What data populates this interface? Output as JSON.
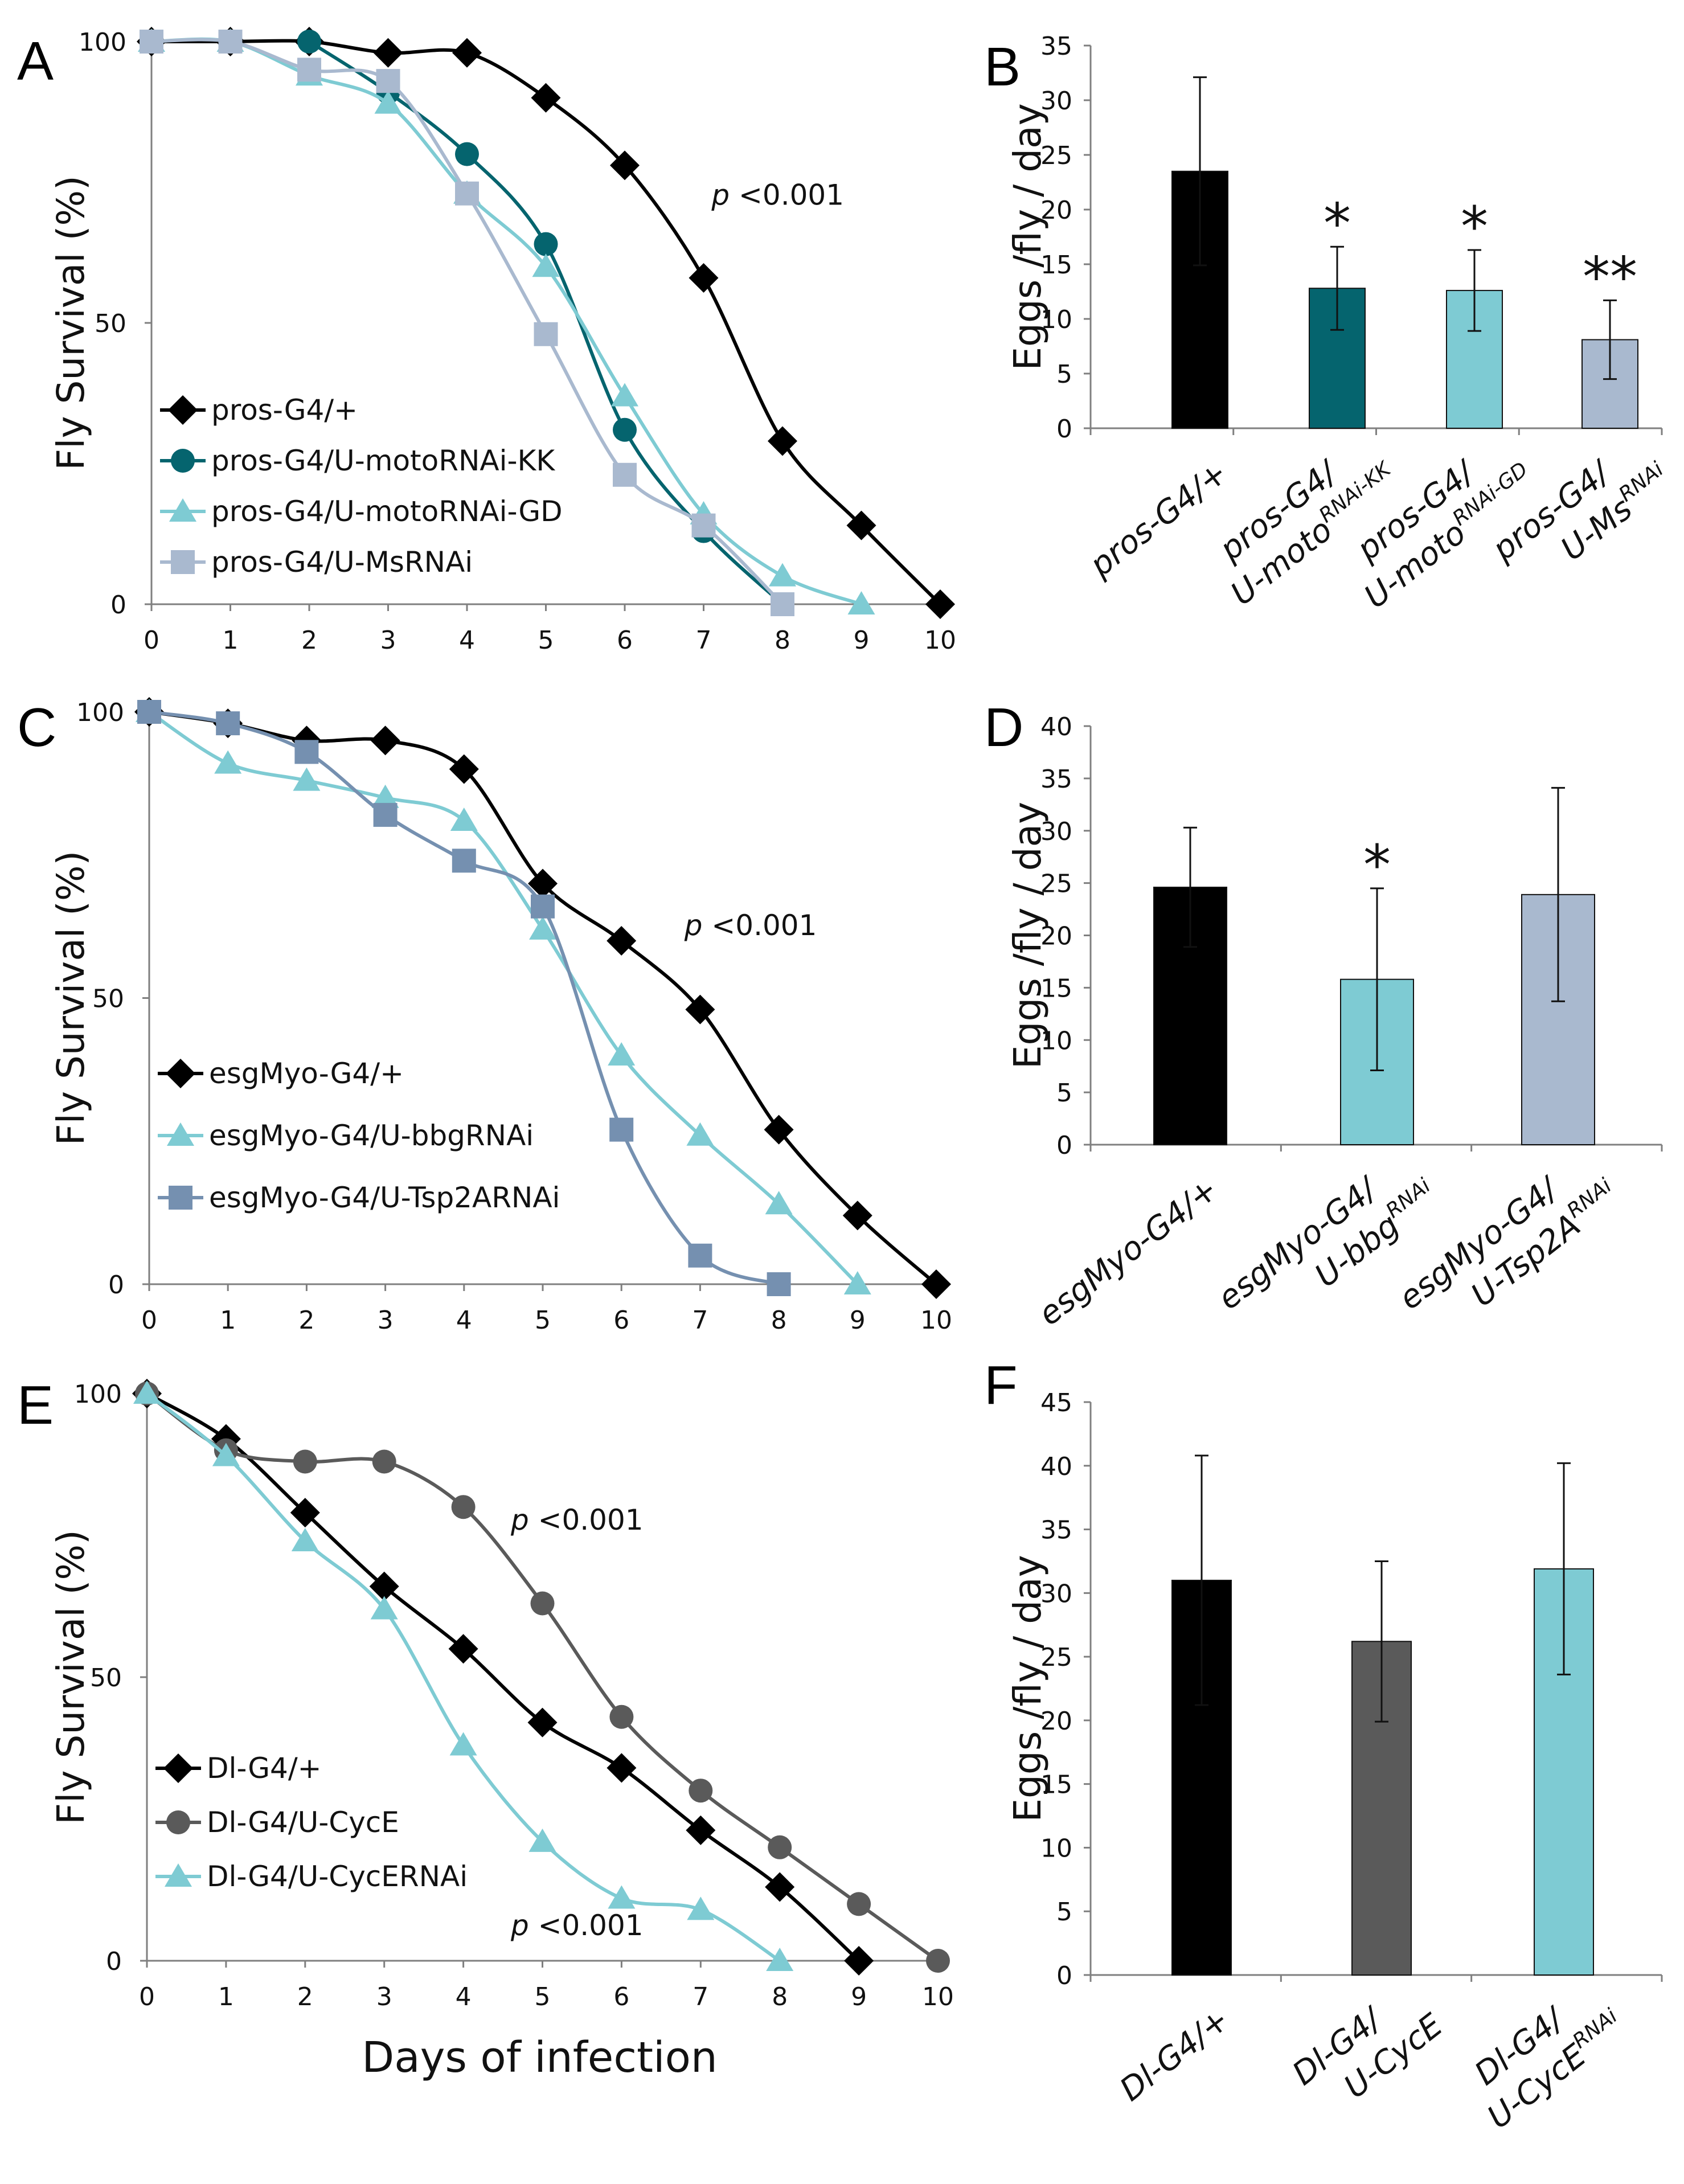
{
  "colors": {
    "black": "#000000",
    "teal": "#05646e",
    "light_teal": "#7ecbd3",
    "lavender": "#a9b9cf",
    "steel_blue": "#7590b0",
    "gray": "#5a5a5a"
  },
  "chart_data": [
    {
      "panel": "A",
      "type": "line",
      "ylabel": "Fly Survival (%)",
      "xlabel": "",
      "xlim": [
        0,
        10
      ],
      "ylim": [
        0,
        100
      ],
      "xticks": [
        "0",
        "1",
        "2",
        "3",
        "4",
        "5",
        "6",
        "7",
        "8",
        "9",
        "10"
      ],
      "yticks": [
        "0",
        "50",
        "100"
      ],
      "series": [
        {
          "name": "pros-G4/+",
          "color": "#000000",
          "marker": "diamond",
          "x": [
            0,
            1,
            2,
            3,
            4,
            5,
            6,
            7,
            8,
            9,
            10
          ],
          "y": [
            100,
            100,
            100,
            98,
            98,
            90,
            78,
            58,
            29,
            14,
            0
          ]
        },
        {
          "name": "pros-G4/U-motoRNAi-KK",
          "color": "#05646e",
          "marker": "circle",
          "x": [
            2,
            3,
            4,
            5,
            6,
            7,
            8
          ],
          "y": [
            100,
            91,
            80,
            64,
            31,
            13,
            0
          ]
        },
        {
          "name": "pros-G4/U-motoRNAi-GD",
          "color": "#7ecbd3",
          "marker": "triangle",
          "x": [
            0,
            1,
            2,
            3,
            4,
            5,
            6,
            7,
            8,
            9
          ],
          "y": [
            100,
            100,
            94,
            89,
            73,
            60,
            37,
            16,
            5,
            0
          ]
        },
        {
          "name": "pros-G4/U-MsRNAi",
          "color": "#a9b9cf",
          "marker": "square",
          "x": [
            0,
            1,
            2,
            3,
            4,
            5,
            6,
            7,
            8
          ],
          "y": [
            100,
            100,
            95,
            93,
            73,
            48,
            23,
            14,
            0
          ]
        }
      ],
      "annotations": [
        {
          "italic": "p",
          "text": " <0.001",
          "x": 7.1,
          "y": 71
        }
      ]
    },
    {
      "panel": "B",
      "type": "bar",
      "ylabel": "Eggs /fly / day",
      "ylim": [
        0,
        35
      ],
      "yticks": [
        "0",
        "5",
        "10",
        "15",
        "20",
        "25",
        "30",
        "35"
      ],
      "categories": [
        {
          "line1": "pros-G4/+",
          "line2_base": "",
          "line2_sup": ""
        },
        {
          "line1": "pros-G4/",
          "line2_base": "U-moto",
          "line2_sup": "RNAi-KK"
        },
        {
          "line1": "pros-G4/",
          "line2_base": "U-moto",
          "line2_sup": "RNAi-GD"
        },
        {
          "line1": "pros-G4/",
          "line2_base": "U-Ms",
          "line2_sup": "RNAi"
        }
      ],
      "values": [
        23.5,
        12.8,
        12.6,
        8.1
      ],
      "errors": [
        8.6,
        3.8,
        3.7,
        3.6
      ],
      "colors": [
        "#000000",
        "#05646e",
        "#7ecbd3",
        "#a9b9cf"
      ],
      "significance": [
        "",
        "*",
        "*",
        "**"
      ]
    },
    {
      "panel": "C",
      "type": "line",
      "ylabel": "Fly Survival (%)",
      "xlabel": "",
      "xlim": [
        0,
        10
      ],
      "ylim": [
        0,
        100
      ],
      "xticks": [
        "0",
        "1",
        "2",
        "3",
        "4",
        "5",
        "6",
        "7",
        "8",
        "9",
        "10"
      ],
      "yticks": [
        "0",
        "50",
        "100"
      ],
      "series": [
        {
          "name": "esgMyo-G4/+",
          "color": "#000000",
          "marker": "diamond",
          "x": [
            0,
            1,
            2,
            3,
            4,
            5,
            6,
            7,
            8,
            9,
            10
          ],
          "y": [
            100,
            98,
            95,
            95,
            90,
            70,
            60,
            48,
            27,
            12,
            0
          ]
        },
        {
          "name": "esgMyo-G4/U-bbgRNAi",
          "color": "#7ecbd3",
          "marker": "triangle",
          "x": [
            0,
            1,
            2,
            3,
            4,
            5,
            6,
            7,
            8,
            9
          ],
          "y": [
            100,
            91,
            88,
            85,
            81,
            62,
            40,
            26,
            14,
            0
          ]
        },
        {
          "name": "esgMyo-G4/U-Tsp2ARNAi",
          "color": "#7590b0",
          "marker": "square",
          "x": [
            0,
            1,
            2,
            3,
            4,
            5,
            6,
            7,
            8
          ],
          "y": [
            100,
            98,
            93,
            82,
            74,
            66,
            27,
            5,
            0
          ]
        }
      ],
      "annotations": [
        {
          "italic": "p",
          "text": " <0.001",
          "x": 6.8,
          "y": 61
        }
      ]
    },
    {
      "panel": "D",
      "type": "bar",
      "ylabel": "Eggs /fly / day",
      "ylim": [
        0,
        40
      ],
      "yticks": [
        "0",
        "5",
        "10",
        "15",
        "20",
        "25",
        "30",
        "35",
        "40"
      ],
      "categories": [
        {
          "line1": "esgMyo-G4/+",
          "line2_base": "",
          "line2_sup": ""
        },
        {
          "line1": "esgMyo-G4/",
          "line2_base": "U-bbg",
          "line2_sup": "RNAi"
        },
        {
          "line1": "esgMyo-G4/",
          "line2_base": "U-Tsp2A",
          "line2_sup": "RNAi"
        }
      ],
      "values": [
        24.6,
        15.8,
        23.9
      ],
      "errors": [
        5.7,
        8.7,
        10.2
      ],
      "colors": [
        "#000000",
        "#7ecbd3",
        "#a9b9cf"
      ],
      "significance": [
        "",
        "*",
        ""
      ]
    },
    {
      "panel": "E",
      "type": "line",
      "ylabel": "Fly Survival (%)",
      "xlabel": "Days of infection",
      "xlim": [
        0,
        10
      ],
      "ylim": [
        0,
        100
      ],
      "xticks": [
        "0",
        "1",
        "2",
        "3",
        "4",
        "5",
        "6",
        "7",
        "8",
        "9",
        "10"
      ],
      "yticks": [
        "0",
        "50",
        "100"
      ],
      "series": [
        {
          "name": "Dl-G4/+",
          "color": "#000000",
          "marker": "diamond",
          "x": [
            0,
            1,
            2,
            3,
            4,
            5,
            6,
            7,
            8,
            9
          ],
          "y": [
            100,
            92,
            79,
            66,
            55,
            42,
            34,
            23,
            13,
            0
          ]
        },
        {
          "name": "Dl-G4/U-CycE",
          "color": "#5a5a5a",
          "marker": "circle",
          "x": [
            0,
            1,
            2,
            3,
            4,
            5,
            6,
            7,
            8,
            9,
            10
          ],
          "y": [
            100,
            90,
            88,
            88,
            80,
            63,
            43,
            30,
            20,
            10,
            0
          ]
        },
        {
          "name": "Dl-G4/U-CycERNAi",
          "color": "#7ecbd3",
          "marker": "triangle",
          "x": [
            0,
            1,
            2,
            3,
            4,
            5,
            6,
            7,
            8
          ],
          "y": [
            100,
            89,
            74,
            62,
            38,
            21,
            11,
            9,
            0
          ]
        }
      ],
      "annotations": [
        {
          "italic": "p",
          "text": " <0.001",
          "x": 4.6,
          "y": 76
        },
        {
          "italic": "p",
          "text": " <0.001",
          "x": 4.6,
          "y": 4.5
        }
      ]
    },
    {
      "panel": "F",
      "type": "bar",
      "ylabel": "Eggs /fly / day",
      "ylim": [
        0,
        45
      ],
      "yticks": [
        "0",
        "5",
        "10",
        "15",
        "20",
        "25",
        "30",
        "35",
        "40",
        "45"
      ],
      "categories": [
        {
          "line1": "Dl-G4/+",
          "line2_base": "",
          "line2_sup": ""
        },
        {
          "line1": "Dl-G4/",
          "line2_base": "U-CycE",
          "line2_sup": ""
        },
        {
          "line1": "Dl-G4/",
          "line2_base": "U-CycE",
          "line2_sup": "RNAi"
        }
      ],
      "values": [
        31.0,
        26.2,
        31.9
      ],
      "errors": [
        9.8,
        6.3,
        8.3
      ],
      "colors": [
        "#000000",
        "#5a5a5a",
        "#7ecbd3"
      ],
      "significance": [
        "",
        "",
        ""
      ]
    }
  ]
}
